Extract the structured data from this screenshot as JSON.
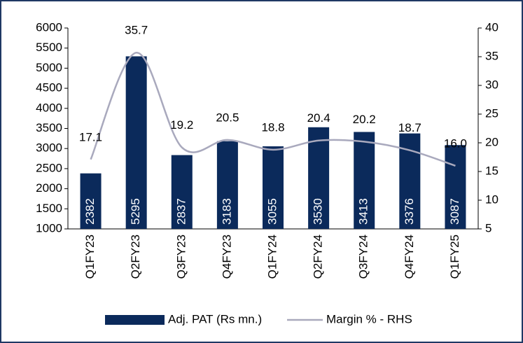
{
  "chart_data": {
    "type": "bar-line",
    "categories": [
      "Q1FY23",
      "Q2FY23",
      "Q3FY23",
      "Q4FY23",
      "Q1FY24",
      "Q2FY24",
      "Q3FY24",
      "Q4FY24",
      "Q1FY25"
    ],
    "series": [
      {
        "name": "Adj. PAT (Rs mn.)",
        "type": "bar",
        "color": "#0b2a5b",
        "values": [
          2382,
          5295,
          2837,
          3183,
          3055,
          3530,
          3413,
          3376,
          3087
        ]
      },
      {
        "name": "Margin % - RHS",
        "type": "line",
        "axis": "y2",
        "color": "#a9a9bd",
        "values": [
          17.1,
          35.7,
          19.2,
          20.5,
          18.8,
          20.4,
          20.2,
          18.7,
          16.0
        ],
        "value_labels": [
          "17.1",
          "35.7",
          "19.2",
          "20.5",
          "18.8",
          "20.4",
          "20.2",
          "18.7",
          "16.0"
        ]
      }
    ],
    "ylim": [
      1000,
      6000
    ],
    "yticks": [
      1000,
      1500,
      2000,
      2500,
      3000,
      3500,
      4000,
      4500,
      5000,
      5500,
      6000
    ],
    "y2lim": [
      5,
      40
    ],
    "y2ticks": [
      5,
      10,
      15,
      20,
      25,
      30,
      35,
      40
    ],
    "grid": false,
    "legend": "bottom"
  }
}
